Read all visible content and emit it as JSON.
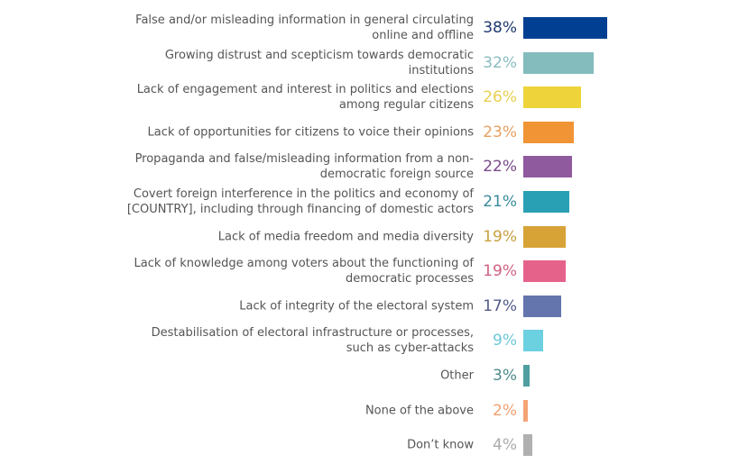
{
  "chart_data": {
    "type": "bar",
    "orientation": "horizontal",
    "unit": "%",
    "xlim": [
      0,
      38
    ],
    "grid": false,
    "categories": [
      "False and/or misleading information in general circulating online and offline",
      "Growing distrust and scepticism towards democratic institutions",
      "Lack of engagement and interest in politics and elections among regular citizens",
      "Lack of opportunities for citizens to voice their opinions",
      "Propaganda and false/misleading information from a non-democratic foreign source",
      "Covert foreign interference in the politics and economy of [COUNTRY], including through financing of domestic actors",
      "Lack of media freedom and media diversity",
      "Lack of knowledge among voters about the functioning of democratic processes",
      "Lack of integrity of the electoral system",
      "Destabilisation of electoral infrastructure or processes, such as cyber-attacks",
      "Other",
      "None of the above",
      "Don’t know"
    ],
    "labels_display": [
      "False and/or misleading information in general circulating\nonline and offline",
      "Growing distrust and scepticism towards democratic\ninstitutions",
      "Lack of engagement and interest in politics and elections\namong regular citizens",
      "Lack of opportunities for citizens to voice their opinions",
      "Propaganda and false/misleading information from a non-\ndemocratic foreign source",
      "Covert foreign interference in the politics and economy of\n[COUNTRY], including through financing of domestic actors",
      "Lack of media freedom and media diversity",
      "Lack of knowledge among voters about the functioning of\ndemocratic processes",
      "Lack of integrity of the electoral system",
      "Destabilisation of electoral infrastructure or processes,\nsuch as cyber-attacks",
      "Other",
      "None of the above",
      "Don’t know"
    ],
    "values": [
      38,
      32,
      26,
      23,
      22,
      21,
      19,
      19,
      17,
      9,
      3,
      2,
      4
    ],
    "value_labels": [
      "38%",
      "32%",
      "26%",
      "23%",
      "22%",
      "21%",
      "19%",
      "19%",
      "17%",
      "9%",
      "3%",
      "2%",
      "4%"
    ],
    "colors": [
      "#003f91",
      "#84bcbd",
      "#eed43a",
      "#f09435",
      "#905a9f",
      "#2aa0b4",
      "#d7a337",
      "#e5638b",
      "#6474ac",
      "#6bd0e0",
      "#4f9ea0",
      "#f4a477",
      "#b0b0b0"
    ],
    "text_colors": [
      "#1f3a6e",
      "#8abcc0",
      "#e8d050",
      "#e8a060",
      "#7a4a8a",
      "#3a8a9a",
      "#c8a040",
      "#d06080",
      "#505a8a",
      "#6cc8d8",
      "#4f8a8c",
      "#f0a070",
      "#aaaaaa"
    ]
  }
}
